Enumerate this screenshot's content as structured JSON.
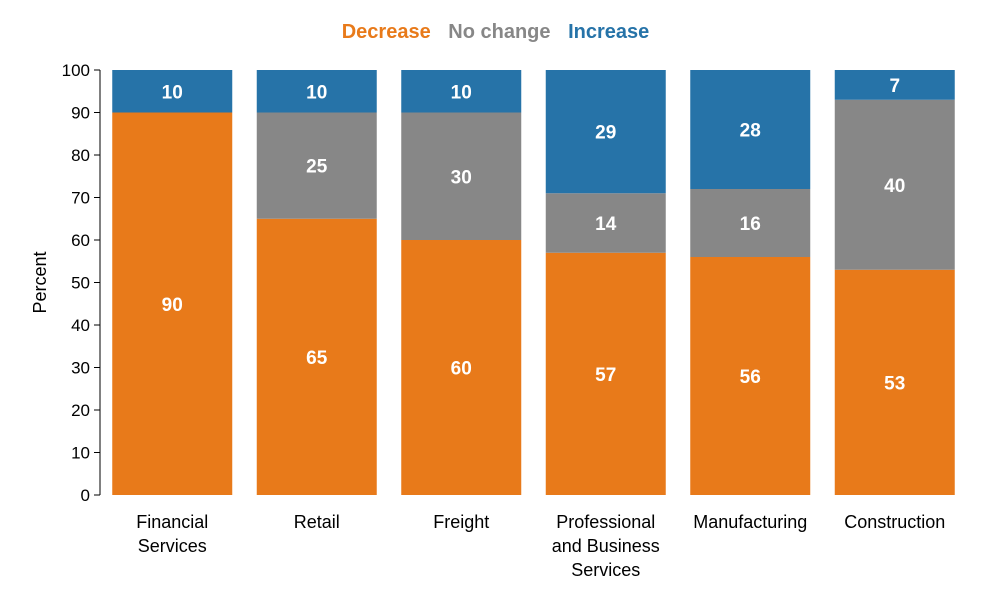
{
  "chart_data": {
    "type": "bar",
    "stacked": true,
    "title": "",
    "xlabel": "",
    "ylabel": "Percent",
    "ylim": [
      0,
      100
    ],
    "yticks": [
      0,
      10,
      20,
      30,
      40,
      50,
      60,
      70,
      80,
      90,
      100
    ],
    "grid": false,
    "legend_position": "top-center",
    "categories": [
      [
        "Financial",
        "Services"
      ],
      [
        "Retail"
      ],
      [
        "Freight"
      ],
      [
        "Professional",
        "and Business",
        "Services"
      ],
      [
        "Manufacturing"
      ],
      [
        "Construction"
      ]
    ],
    "series": [
      {
        "name": "Decrease",
        "color": "#E87A1A",
        "values": [
          90,
          65,
          60,
          57,
          56,
          53
        ]
      },
      {
        "name": "No change",
        "color": "#878787",
        "values": [
          null,
          25,
          30,
          14,
          16,
          40
        ]
      },
      {
        "name": "Increase",
        "color": "#2673A8",
        "values": [
          10,
          10,
          10,
          29,
          28,
          7
        ]
      }
    ]
  }
}
